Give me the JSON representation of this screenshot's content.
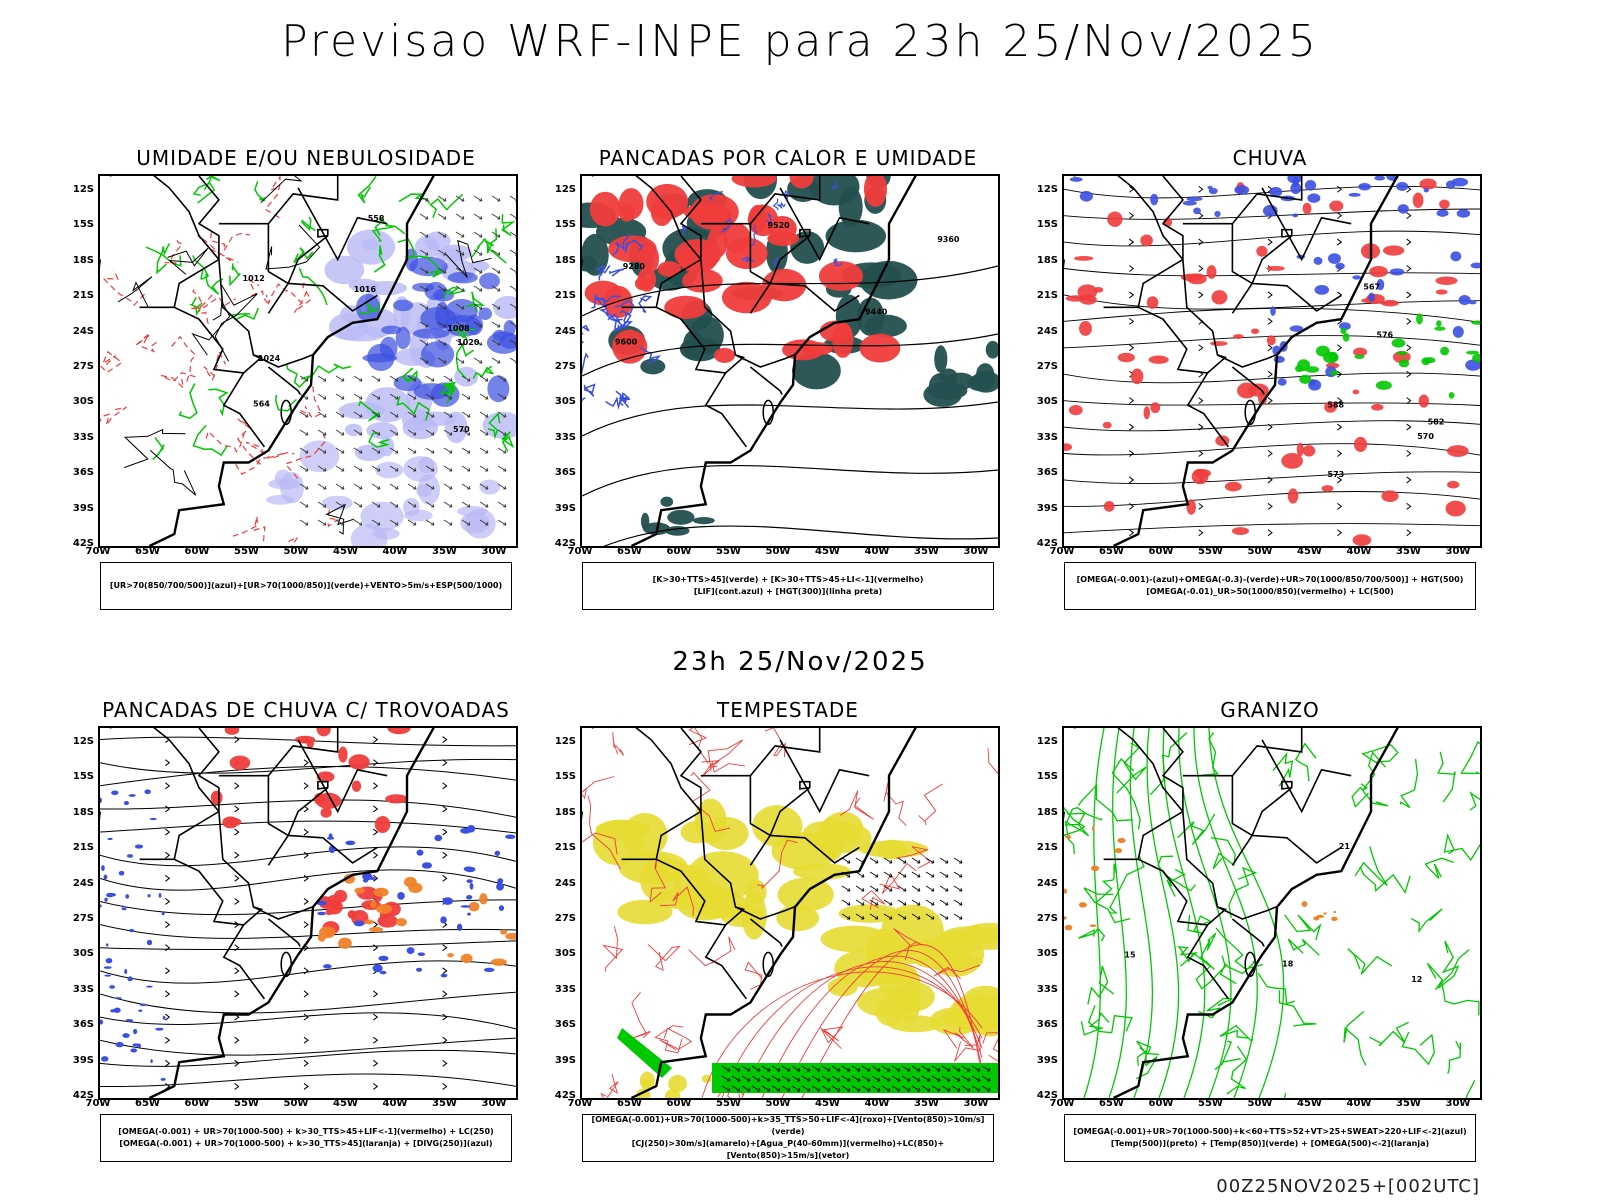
{
  "header": {
    "title": "Previsao WRF-INPE  para 23h 25/Nov/2025"
  },
  "middle": {
    "title": "23h 25/Nov/2025"
  },
  "footer": {
    "run": "00Z25NOV2025+[002UTC]"
  },
  "lat_labels": [
    "12S",
    "15S",
    "18S",
    "21S",
    "24S",
    "27S",
    "30S",
    "33S",
    "36S",
    "39S",
    "42S"
  ],
  "lon_labels": [
    "70W",
    "65W",
    "60W",
    "55W",
    "50W",
    "45W",
    "40W",
    "35W",
    "30W"
  ],
  "panels": [
    {
      "title": "UMIDADE E/OU NEBULOSIDADE",
      "legend": [
        "[UR>70(850/700/500)](azul)+[UR>70(1000/850)](verde)+VENTO>5m/s+ESP(500/1000)"
      ],
      "contours": [
        "1012",
        "1008",
        "1016",
        "1020",
        "1024",
        "570",
        "564",
        "558"
      ]
    },
    {
      "title": "PANCADAS POR CALOR E UMIDADE",
      "legend": [
        "[K>30+TTS>45](verde) + [K>30+TTS>45+LI<-1](vermelho)",
        "[LIF](cont.azul) + [HGT(300)](linha preta)"
      ],
      "contours": [
        "9600",
        "9520",
        "9440",
        "9360",
        "9280"
      ]
    },
    {
      "title": "CHUVA",
      "legend": [
        "[OMEGA(-0.001)-(azul)+OMEGA(-0.3)-(verde)+UR>70(1000/850/700/500)] + HGT(500)",
        "[OMEGA(-0.01)_UR>50(1000/850)(vermelho) + LC(500)"
      ],
      "contours": [
        "588",
        "582",
        "576",
        "570",
        "573",
        "567"
      ]
    },
    {
      "title": "PANCADAS DE CHUVA C/ TROVOADAS",
      "legend": [
        "[OMEGA(-0.001) + UR>70(1000-500) + k>30_TTS>45+LIF<-1](vermelho) + LC(250)",
        "[OMEGA(-0.001) + UR>70(1000-500) + k>30_TTS>45](laranja) + [DIVG(250)](azul)"
      ],
      "contours": []
    },
    {
      "title": "TEMPESTADE",
      "legend": [
        "[OMEGA(-0.001)+UR>70(1000-500)+k>35_TTS>50+LIF<-4](roxo)+[Vento(850)>10m/s](verde)",
        "[CJ(250)>30m/s](amarelo)+[Agua_P(40-60mm)](vermelho)+LC(850)+[Vento(850)>15m/s](vetor)"
      ],
      "contours": []
    },
    {
      "title": "GRANIZO",
      "legend": [
        "[OMEGA(-0.001)+UR>70(1000-500)+k<60+TTS>52+VT>25+SWEAT>220+LIF<-2](azul)",
        "[Temp(500)](preto) + [Temp(850)](verde) + [OMEGA(500)<-2](laranja)"
      ],
      "contours": [
        "21",
        "18",
        "15",
        "12"
      ]
    }
  ],
  "colors": {
    "blue": "#3b4fe0",
    "lightblue": "#b9b9f5",
    "green": "#00c800",
    "red": "#f03c3c",
    "darkteal": "#234f4f",
    "yellow": "#e6dc32",
    "orange": "#f08228",
    "purple": "#6a3ce0"
  }
}
